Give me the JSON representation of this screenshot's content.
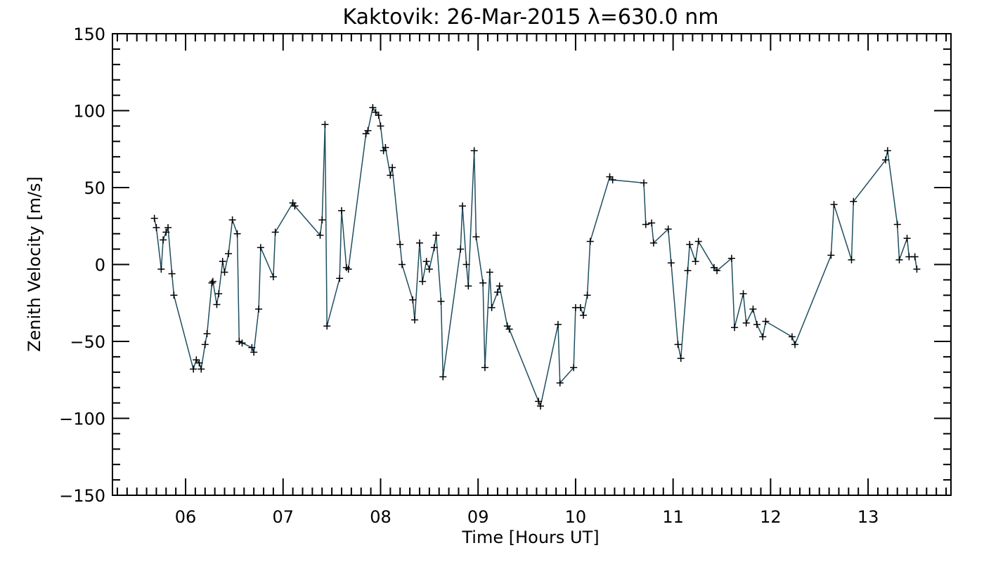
{
  "chart_data": {
    "type": "line",
    "title": "Kaktovik: 26-Mar-2015 λ=630.0 nm",
    "xlabel": "Time [Hours UT]",
    "ylabel": "Zenith Velocity [m/s]",
    "xlim": [
      5.25,
      13.85
    ],
    "ylim": [
      -150,
      150
    ],
    "xticks": [
      6,
      7,
      8,
      9,
      10,
      11,
      12,
      13
    ],
    "xtick_labels": [
      "06",
      "07",
      "08",
      "09",
      "10",
      "11",
      "12",
      "13"
    ],
    "yticks": [
      -150,
      -100,
      -50,
      0,
      50,
      100,
      150
    ],
    "ytick_labels": [
      "-150",
      "-100",
      "-50",
      "0",
      "50",
      "100",
      "150"
    ],
    "grid": false,
    "line_color": "#1f4e5f",
    "marker": "plus",
    "series": [
      {
        "x": [
          5.68,
          5.7,
          5.75,
          5.77,
          5.8,
          5.82,
          5.86,
          5.88,
          6.08,
          6.11,
          6.14,
          6.16,
          6.2,
          6.22,
          6.27,
          6.28,
          6.32,
          6.34,
          6.38,
          6.4,
          6.44,
          6.48,
          6.53,
          6.55,
          6.58,
          6.68,
          6.7,
          6.75,
          6.77,
          6.9,
          6.92,
          7.1,
          7.12,
          7.38,
          7.4,
          7.43,
          7.45,
          7.58,
          7.6,
          7.65,
          7.67,
          7.85,
          7.87,
          7.92,
          7.95,
          7.98,
          8.0,
          8.03,
          8.05,
          8.1,
          8.12,
          8.2,
          8.22,
          8.33,
          8.35,
          8.4,
          8.43,
          8.47,
          8.5,
          8.55,
          8.57,
          8.62,
          8.64,
          8.82,
          8.84,
          8.88,
          8.9,
          8.96,
          8.98,
          9.05,
          9.07,
          9.12,
          9.14,
          9.2,
          9.22,
          9.3,
          9.32,
          9.62,
          9.64,
          9.82,
          9.84,
          9.98,
          10.0,
          10.05,
          10.08,
          10.12,
          10.15,
          10.35,
          10.38,
          10.7,
          10.72,
          10.78,
          10.8,
          10.95,
          10.98,
          11.05,
          11.08,
          11.15,
          11.17,
          11.23,
          11.26,
          11.42,
          11.45,
          11.6,
          11.63,
          11.72,
          11.75,
          11.82,
          11.86,
          11.92,
          11.95,
          12.22,
          12.25,
          12.62,
          12.65,
          12.83,
          12.85,
          13.18,
          13.2,
          13.3,
          13.32,
          13.4,
          13.42,
          13.48,
          13.5
        ],
        "y": [
          30,
          24,
          -3,
          16,
          21,
          24,
          -6,
          -20,
          -68,
          -62,
          -64,
          -68,
          -52,
          -45,
          -12,
          -11,
          -26,
          -19,
          2,
          -5,
          7,
          29,
          20,
          -50,
          -51,
          -54,
          -57,
          -29,
          11,
          -8,
          21,
          40,
          38,
          19,
          29,
          91,
          -40,
          -9,
          35,
          -2,
          -3,
          85,
          87,
          102,
          99,
          97,
          90,
          74,
          76,
          58,
          63,
          13,
          0,
          -23,
          -36,
          14,
          -11,
          2,
          -3,
          11,
          19,
          -24,
          -73,
          10,
          38,
          0,
          -14,
          74,
          18,
          -12,
          -67,
          -5,
          -28,
          -18,
          -14,
          -40,
          -42,
          -89,
          -92,
          -39,
          -77,
          -67,
          -28,
          -28,
          -33,
          -20,
          15,
          57,
          55,
          53,
          26,
          27,
          14,
          23,
          1,
          -52,
          -61,
          -4,
          13,
          2,
          15,
          -2,
          -4,
          4,
          -41,
          -19,
          -38,
          -29,
          -39,
          -47,
          -37,
          -47,
          -52,
          6,
          39,
          3,
          41,
          68,
          74,
          26,
          3,
          17,
          5,
          5,
          -3
        ]
      }
    ]
  }
}
